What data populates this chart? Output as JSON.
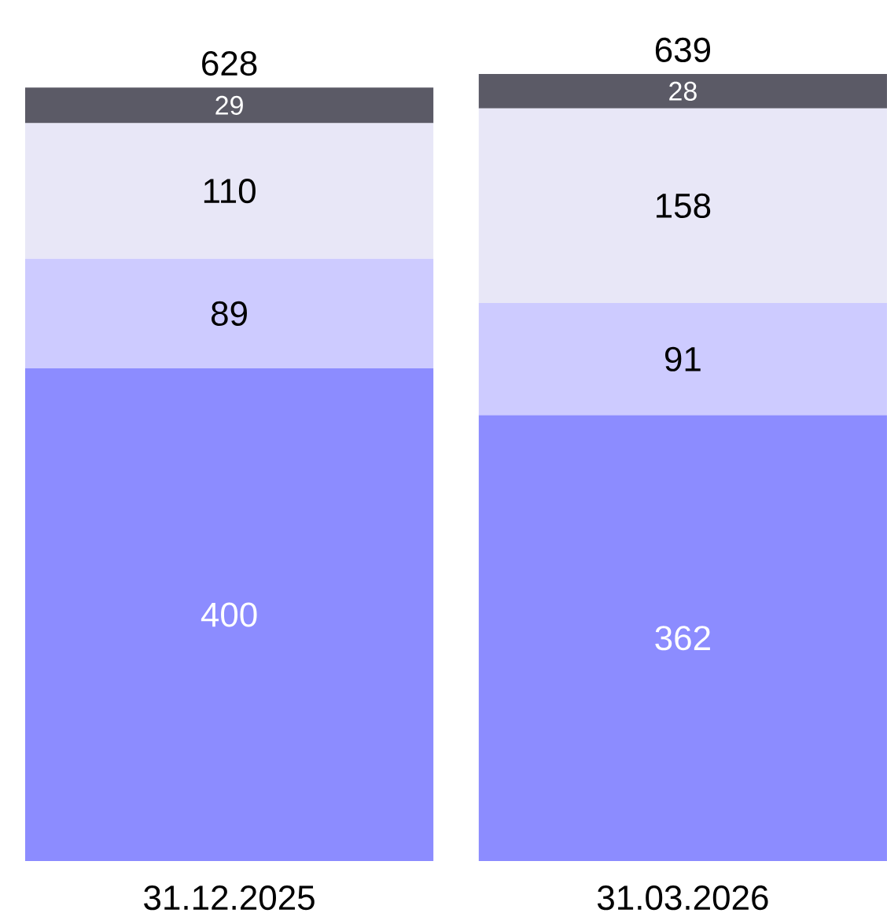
{
  "chart_data": {
    "type": "bar",
    "stacked": true,
    "data_labels": true,
    "categories": [
      "31.12.2025",
      "31.03.2026"
    ],
    "series": [
      {
        "color": "#8c8cff",
        "values": [
          400,
          362
        ]
      },
      {
        "color": "#cdcbff",
        "values": [
          89,
          91
        ]
      },
      {
        "color": "#e8e7f7",
        "values": [
          110,
          158
        ]
      },
      {
        "color": "#5b5a66",
        "values": [
          29,
          28
        ]
      }
    ],
    "totals": [
      "628",
      "639"
    ]
  }
}
